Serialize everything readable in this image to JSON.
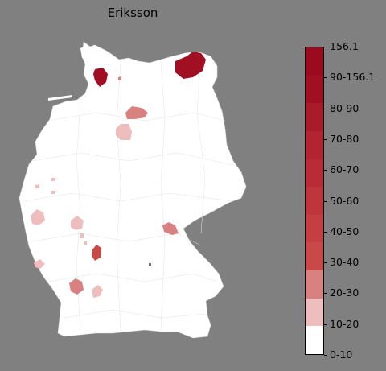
{
  "map": {
    "title": "Eriksson",
    "region": "Germany districts",
    "base_fill": "#ffffff",
    "background": "#808080"
  },
  "legend": {
    "labels": [
      "156.1",
      "90-156.1",
      "80-90",
      "70-80",
      "60-70",
      "50-60",
      "40-50",
      "30-40",
      "20-30",
      "10-20",
      "0-10"
    ],
    "bins": [
      {
        "label": "0-10",
        "color": "#ffffff"
      },
      {
        "label": "10-20",
        "color": "#eebebe"
      },
      {
        "label": "20-30",
        "color": "#d98080"
      },
      {
        "label": "30-40",
        "color": "#c94848"
      },
      {
        "label": "40-50",
        "color": "#c43e42"
      },
      {
        "label": "50-60",
        "color": "#bf353c"
      },
      {
        "label": "60-70",
        "color": "#b92c36"
      },
      {
        "label": "70-80",
        "color": "#b22430"
      },
      {
        "label": "80-90",
        "color": "#aa1b2a"
      },
      {
        "label": "90-156.1",
        "color": "#a00f22"
      },
      {
        "label": "156.1",
        "color": "#9b0a1e"
      }
    ]
  }
}
